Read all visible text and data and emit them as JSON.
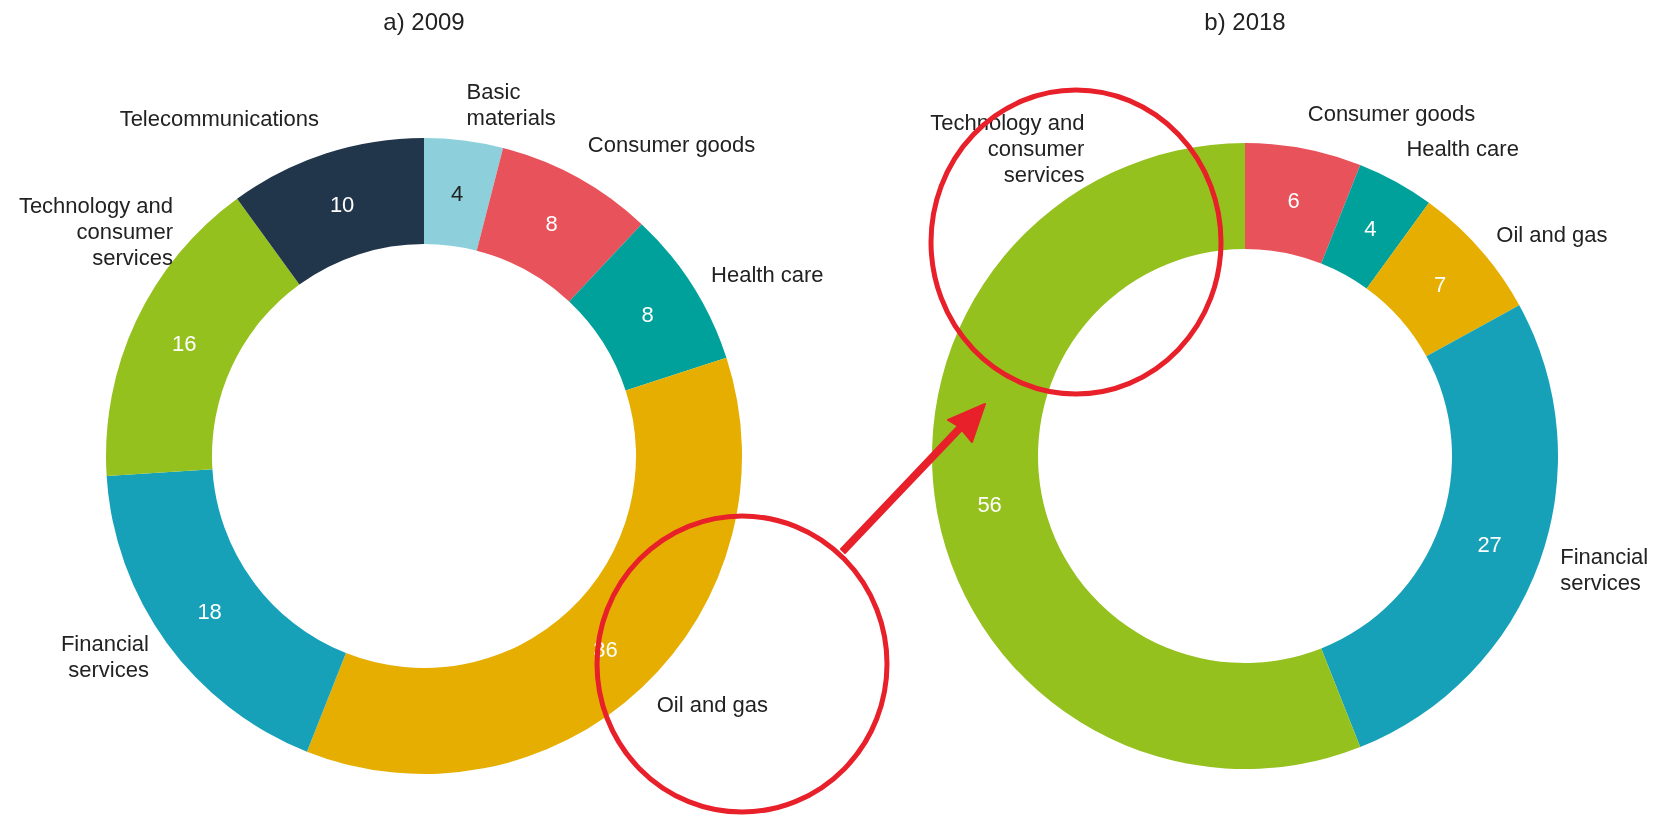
{
  "chart_data": [
    {
      "type": "donut",
      "title": "a) 2009",
      "categories": [
        "Basic materials",
        "Consumer goods",
        "Health care",
        "Oil and gas",
        "Financial services",
        "Technology and consumer services",
        "Telecommunications"
      ],
      "values": [
        4,
        8,
        8,
        36,
        18,
        16,
        10
      ],
      "colors": [
        "#8dd0dc",
        "#e8525a",
        "#00a19a",
        "#e5ae00",
        "#17a1b9",
        "#95c11f",
        "#22364b"
      ],
      "data_labels": true
    },
    {
      "type": "donut",
      "title": "b) 2018",
      "categories": [
        "Consumer goods",
        "Health care",
        "Oil and gas",
        "Financial services",
        "Technology and consumer services"
      ],
      "values": [
        6,
        4,
        7,
        27,
        56
      ],
      "colors": [
        "#e8525a",
        "#00a19a",
        "#e5ae00",
        "#17a1b9",
        "#95c11f"
      ],
      "data_labels": true
    }
  ]
}
